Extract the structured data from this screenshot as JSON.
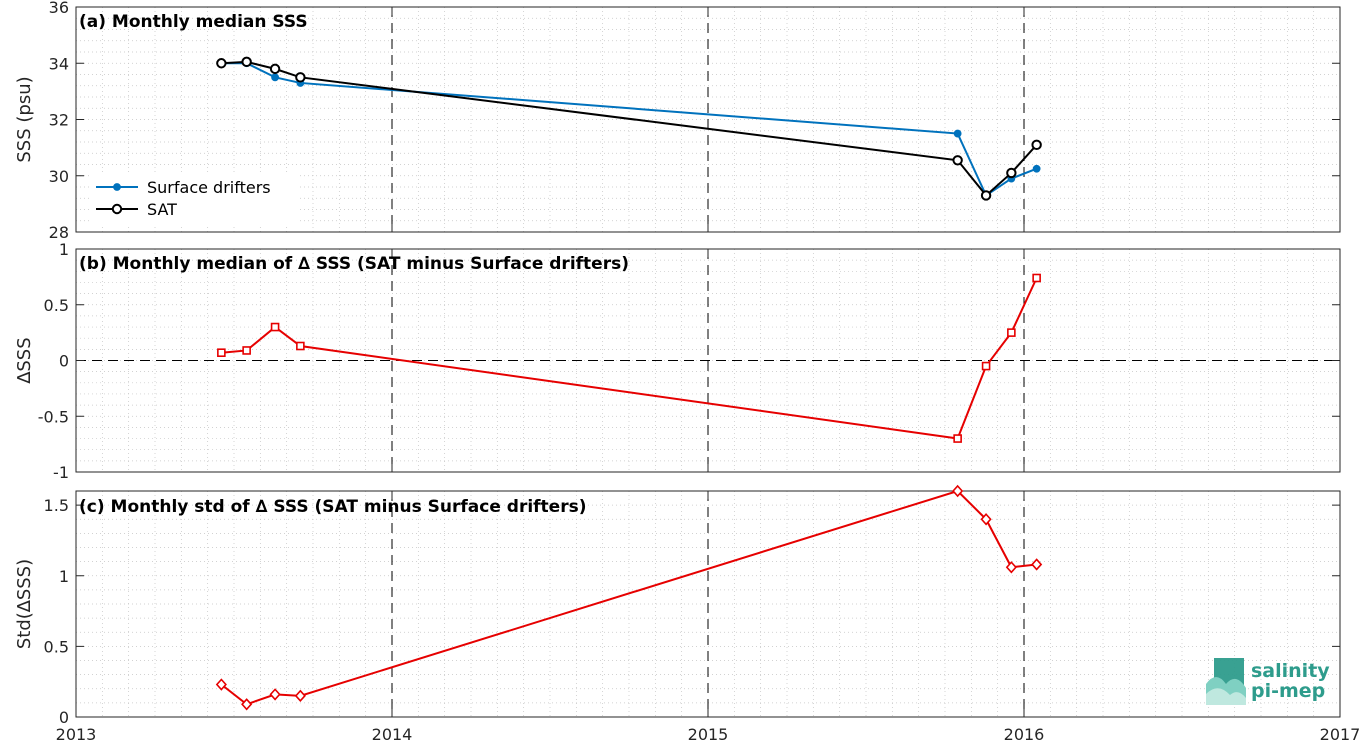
{
  "chart_data": [
    {
      "id": "a",
      "type": "line",
      "title": "(a) Monthly median SSS",
      "ylabel": "SSS (psu)",
      "xlim": [
        2013,
        2017
      ],
      "ylim": [
        28,
        36
      ],
      "yticks": [
        28,
        30,
        32,
        34,
        36
      ],
      "ytick_labels": [
        "28",
        "30",
        "32",
        "34",
        "36"
      ],
      "grid": "minor-dotted",
      "legend_position": "lower-left",
      "vlines": [
        2014,
        2015,
        2016
      ],
      "series": [
        {
          "name": "Surface drifters",
          "color": "#0072bd",
          "marker": "dot",
          "x": [
            2013.46,
            2013.54,
            2013.63,
            2013.71,
            2015.79,
            2015.88,
            2015.96,
            2016.04
          ],
          "y": [
            34.0,
            34.0,
            33.5,
            33.3,
            31.5,
            29.3,
            29.9,
            30.25
          ]
        },
        {
          "name": "SAT",
          "color": "#000000",
          "marker": "circle",
          "x": [
            2013.46,
            2013.54,
            2013.63,
            2013.71,
            2015.79,
            2015.88,
            2015.96,
            2016.04
          ],
          "y": [
            34.0,
            34.05,
            33.8,
            33.5,
            30.55,
            29.3,
            30.1,
            31.1
          ]
        }
      ]
    },
    {
      "id": "b",
      "type": "line",
      "title": "(b) Monthly median of ∆ SSS (SAT minus Surface drifters)",
      "ylabel": "∆SSS",
      "xlim": [
        2013,
        2017
      ],
      "ylim": [
        -1,
        1
      ],
      "yticks": [
        -1,
        -0.5,
        0,
        0.5,
        1
      ],
      "ytick_labels": [
        "-1",
        "-0.5",
        "0",
        "0.5",
        "1"
      ],
      "grid": "minor-dotted",
      "vlines": [
        2014,
        2015,
        2016
      ],
      "hline": 0,
      "series": [
        {
          "color": "#e60000",
          "marker": "square",
          "x": [
            2013.46,
            2013.54,
            2013.63,
            2013.71,
            2015.79,
            2015.88,
            2015.96,
            2016.04
          ],
          "y": [
            0.07,
            0.09,
            0.3,
            0.13,
            -0.7,
            -0.05,
            0.25,
            0.74
          ]
        }
      ]
    },
    {
      "id": "c",
      "type": "line",
      "title": "(c) Monthly std of ∆ SSS (SAT minus Surface drifters)",
      "ylabel": "Std(∆SSS)",
      "xlim": [
        2013,
        2017
      ],
      "ylim": [
        0,
        1.6
      ],
      "yticks": [
        0,
        0.5,
        1,
        1.5
      ],
      "ytick_labels": [
        "0",
        "0.5",
        "1",
        "1.5"
      ],
      "xticks": [
        2013,
        2014,
        2015,
        2016,
        2017
      ],
      "xtick_labels": [
        "2013",
        "2014",
        "2015",
        "2016",
        "2017"
      ],
      "grid": "minor-dotted",
      "vlines": [
        2014,
        2015,
        2016
      ],
      "series": [
        {
          "color": "#e60000",
          "marker": "diamond",
          "x": [
            2013.46,
            2013.54,
            2013.63,
            2013.71,
            2015.79,
            2015.88,
            2015.96,
            2016.04
          ],
          "y": [
            0.23,
            0.09,
            0.16,
            0.15,
            1.6,
            1.4,
            1.06,
            1.08
          ]
        }
      ]
    }
  ],
  "logo": {
    "line1": "salinity",
    "line2": "pi-mep",
    "color": "#2e9c8c"
  }
}
